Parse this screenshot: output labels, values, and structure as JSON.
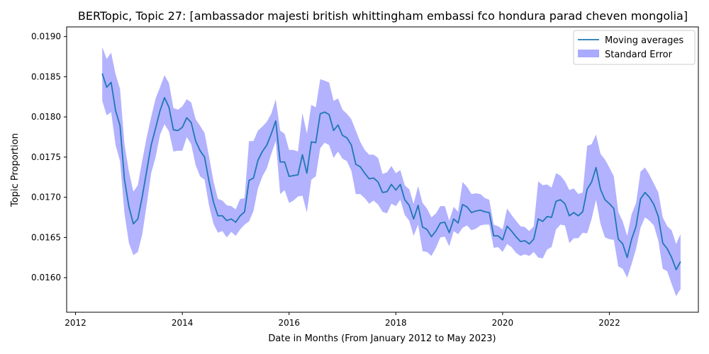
{
  "chart_data": {
    "type": "line",
    "title": "BERTopic, Topic 27: [ambassador majesti british whittingham embassi fco hondura parad cheven mongolia]",
    "xlabel": "Date in Months (From January 2012 to May 2023)",
    "ylabel": "Topic Proportion",
    "xlim": [
      "2011-11",
      "2023-09"
    ],
    "ylim": [
      0.01557,
      0.01912
    ],
    "x_ticks": [
      "2012",
      "2014",
      "2016",
      "2018",
      "2020",
      "2022"
    ],
    "y_ticks": [
      "0.0160",
      "0.0165",
      "0.0170",
      "0.0175",
      "0.0180",
      "0.0185",
      "0.0190"
    ],
    "grid": false,
    "legend": {
      "position": "top-right",
      "entries": [
        "Moving averages",
        "Standard Error"
      ]
    },
    "series": [
      {
        "name": "Moving averages",
        "color": "#1f77b4",
        "points": [
          [
            "2012-07",
            0.01854
          ],
          [
            "2012-08",
            0.01837
          ],
          [
            "2012-09",
            0.01843
          ],
          [
            "2012-10",
            0.01808
          ],
          [
            "2012-11",
            0.01789
          ],
          [
            "2012-12",
            0.01722
          ],
          [
            "2013-01",
            0.01688
          ],
          [
            "2013-02",
            0.01667
          ],
          [
            "2013-03",
            0.01673
          ],
          [
            "2013-04",
            0.01701
          ],
          [
            "2013-05",
            0.01733
          ],
          [
            "2013-06",
            0.01765
          ],
          [
            "2013-07",
            0.01786
          ],
          [
            "2013-08",
            0.01808
          ],
          [
            "2013-09",
            0.01824
          ],
          [
            "2013-10",
            0.01812
          ],
          [
            "2013-11",
            0.01784
          ],
          [
            "2013-12",
            0.01783
          ],
          [
            "2014-01",
            0.01787
          ],
          [
            "2014-02",
            0.01799
          ],
          [
            "2014-03",
            0.01793
          ],
          [
            "2014-04",
            0.0177
          ],
          [
            "2014-05",
            0.01758
          ],
          [
            "2014-06",
            0.0175
          ],
          [
            "2014-07",
            0.0172
          ],
          [
            "2014-08",
            0.01694
          ],
          [
            "2014-09",
            0.01677
          ],
          [
            "2014-10",
            0.01677
          ],
          [
            "2014-11",
            0.01671
          ],
          [
            "2014-12",
            0.01673
          ],
          [
            "2015-01",
            0.01669
          ],
          [
            "2015-02",
            0.01677
          ],
          [
            "2015-03",
            0.01682
          ],
          [
            "2015-04",
            0.01721
          ],
          [
            "2015-05",
            0.01724
          ],
          [
            "2015-06",
            0.01746
          ],
          [
            "2015-07",
            0.01757
          ],
          [
            "2015-08",
            0.01765
          ],
          [
            "2015-09",
            0.01779
          ],
          [
            "2015-10",
            0.01795
          ],
          [
            "2015-11",
            0.01744
          ],
          [
            "2015-12",
            0.01744
          ],
          [
            "2016-01",
            0.01726
          ],
          [
            "2016-02",
            0.01727
          ],
          [
            "2016-03",
            0.01728
          ],
          [
            "2016-04",
            0.01753
          ],
          [
            "2016-05",
            0.0173
          ],
          [
            "2016-06",
            0.01769
          ],
          [
            "2016-07",
            0.01768
          ],
          [
            "2016-08",
            0.01804
          ],
          [
            "2016-09",
            0.01806
          ],
          [
            "2016-10",
            0.01803
          ],
          [
            "2016-11",
            0.01783
          ],
          [
            "2016-12",
            0.0179
          ],
          [
            "2017-01",
            0.01777
          ],
          [
            "2017-02",
            0.01774
          ],
          [
            "2017-03",
            0.01765
          ],
          [
            "2017-04",
            0.01741
          ],
          [
            "2017-05",
            0.01738
          ],
          [
            "2017-06",
            0.0173
          ],
          [
            "2017-07",
            0.01723
          ],
          [
            "2017-08",
            0.01724
          ],
          [
            "2017-09",
            0.01719
          ],
          [
            "2017-10",
            0.01706
          ],
          [
            "2017-11",
            0.01707
          ],
          [
            "2017-12",
            0.01716
          ],
          [
            "2018-01",
            0.01709
          ],
          [
            "2018-02",
            0.01716
          ],
          [
            "2018-03",
            0.01697
          ],
          [
            "2018-04",
            0.0169
          ],
          [
            "2018-05",
            0.01673
          ],
          [
            "2018-06",
            0.0169
          ],
          [
            "2018-07",
            0.01663
          ],
          [
            "2018-08",
            0.0166
          ],
          [
            "2018-09",
            0.01651
          ],
          [
            "2018-10",
            0.01658
          ],
          [
            "2018-11",
            0.01668
          ],
          [
            "2018-12",
            0.01669
          ],
          [
            "2019-01",
            0.01656
          ],
          [
            "2019-02",
            0.01673
          ],
          [
            "2019-03",
            0.01668
          ],
          [
            "2019-04",
            0.01691
          ],
          [
            "2019-05",
            0.01688
          ],
          [
            "2019-06",
            0.01681
          ],
          [
            "2019-07",
            0.01683
          ],
          [
            "2019-08",
            0.01684
          ],
          [
            "2019-09",
            0.01682
          ],
          [
            "2019-10",
            0.01681
          ],
          [
            "2019-11",
            0.01652
          ],
          [
            "2019-12",
            0.01652
          ],
          [
            "2020-01",
            0.01647
          ],
          [
            "2020-02",
            0.01664
          ],
          [
            "2020-03",
            0.01658
          ],
          [
            "2020-04",
            0.01651
          ],
          [
            "2020-05",
            0.01645
          ],
          [
            "2020-06",
            0.01646
          ],
          [
            "2020-07",
            0.01642
          ],
          [
            "2020-08",
            0.01648
          ],
          [
            "2020-09",
            0.01673
          ],
          [
            "2020-10",
            0.0167
          ],
          [
            "2020-11",
            0.01676
          ],
          [
            "2020-12",
            0.01675
          ],
          [
            "2021-01",
            0.01695
          ],
          [
            "2021-02",
            0.01697
          ],
          [
            "2021-03",
            0.01692
          ],
          [
            "2021-04",
            0.01677
          ],
          [
            "2021-05",
            0.01681
          ],
          [
            "2021-06",
            0.01677
          ],
          [
            "2021-07",
            0.01682
          ],
          [
            "2021-08",
            0.0171
          ],
          [
            "2021-09",
            0.01719
          ],
          [
            "2021-10",
            0.01737
          ],
          [
            "2021-11",
            0.0171
          ],
          [
            "2021-12",
            0.01697
          ],
          [
            "2022-01",
            0.01692
          ],
          [
            "2022-02",
            0.01686
          ],
          [
            "2022-03",
            0.01648
          ],
          [
            "2022-04",
            0.01642
          ],
          [
            "2022-05",
            0.01625
          ],
          [
            "2022-06",
            0.01648
          ],
          [
            "2022-07",
            0.01664
          ],
          [
            "2022-08",
            0.01698
          ],
          [
            "2022-09",
            0.01706
          ],
          [
            "2022-10",
            0.017
          ],
          [
            "2022-11",
            0.01691
          ],
          [
            "2022-12",
            0.01676
          ],
          [
            "2023-01",
            0.01643
          ],
          [
            "2023-02",
            0.01636
          ],
          [
            "2023-03",
            0.01625
          ],
          [
            "2023-04",
            0.0161
          ],
          [
            "2023-05",
            0.0162
          ]
        ]
      },
      {
        "name": "Standard Error",
        "color": "#aaaaff",
        "upper": [
          0.01887,
          0.01872,
          0.0188,
          0.01853,
          0.01835,
          0.01766,
          0.01732,
          0.01707,
          0.01715,
          0.01746,
          0.01775,
          0.018,
          0.01823,
          0.01837,
          0.01852,
          0.01842,
          0.01811,
          0.01809,
          0.01813,
          0.01822,
          0.01818,
          0.01797,
          0.01789,
          0.0178,
          0.01751,
          0.0172,
          0.01698,
          0.01696,
          0.0169,
          0.01689,
          0.01685,
          0.01698,
          0.01699,
          0.0177,
          0.0177,
          0.01783,
          0.01788,
          0.01794,
          0.01804,
          0.01822,
          0.01783,
          0.01779,
          0.01759,
          0.01759,
          0.01757,
          0.01805,
          0.01779,
          0.01815,
          0.01812,
          0.01847,
          0.01845,
          0.01843,
          0.0182,
          0.01823,
          0.01809,
          0.01804,
          0.01797,
          0.01783,
          0.01769,
          0.01759,
          0.01753,
          0.01753,
          0.01749,
          0.01729,
          0.01731,
          0.01739,
          0.0173,
          0.01734,
          0.01715,
          0.0171,
          0.01692,
          0.01714,
          0.01693,
          0.01686,
          0.01675,
          0.0168,
          0.01689,
          0.01689,
          0.01671,
          0.01688,
          0.01682,
          0.01719,
          0.01713,
          0.01704,
          0.01705,
          0.01704,
          0.01699,
          0.01697,
          0.01666,
          0.01664,
          0.0166,
          0.01686,
          0.01678,
          0.01671,
          0.01664,
          0.01663,
          0.01658,
          0.01664,
          0.0172,
          0.01715,
          0.01716,
          0.01712,
          0.0173,
          0.01727,
          0.0172,
          0.01709,
          0.01711,
          0.01704,
          0.01706,
          0.01764,
          0.01766,
          0.01778,
          0.01754,
          0.01747,
          0.01737,
          0.01726,
          0.01682,
          0.0167,
          0.01652,
          0.01679,
          0.01693,
          0.01732,
          0.01737,
          0.01728,
          0.01717,
          0.01706,
          0.01675,
          0.01664,
          0.01659,
          0.01642,
          0.01654
        ],
        "lower": [
          0.0182,
          0.01802,
          0.01806,
          0.01765,
          0.01745,
          0.0168,
          0.01643,
          0.01628,
          0.01632,
          0.01654,
          0.01691,
          0.0173,
          0.0175,
          0.01778,
          0.01791,
          0.01782,
          0.01757,
          0.01758,
          0.01758,
          0.01775,
          0.01766,
          0.0174,
          0.01726,
          0.01722,
          0.0169,
          0.01667,
          0.01656,
          0.01658,
          0.0165,
          0.01657,
          0.01652,
          0.0166,
          0.01666,
          0.0167,
          0.01683,
          0.01711,
          0.01726,
          0.01736,
          0.01754,
          0.0177,
          0.01704,
          0.01709,
          0.01693,
          0.01696,
          0.01701,
          0.01702,
          0.01681,
          0.01722,
          0.01726,
          0.01761,
          0.01768,
          0.01765,
          0.01749,
          0.01757,
          0.01748,
          0.01745,
          0.01733,
          0.01704,
          0.01704,
          0.01699,
          0.01692,
          0.01696,
          0.01691,
          0.01682,
          0.0168,
          0.01692,
          0.01689,
          0.01697,
          0.01678,
          0.01671,
          0.01652,
          0.01666,
          0.01633,
          0.01632,
          0.01627,
          0.01637,
          0.0165,
          0.01651,
          0.01639,
          0.01658,
          0.01654,
          0.01662,
          0.01665,
          0.01659,
          0.01661,
          0.01665,
          0.01666,
          0.01666,
          0.01637,
          0.01638,
          0.01632,
          0.01642,
          0.01638,
          0.01631,
          0.01627,
          0.01629,
          0.01627,
          0.01632,
          0.01625,
          0.01624,
          0.01635,
          0.01638,
          0.0166,
          0.01666,
          0.01665,
          0.01643,
          0.01649,
          0.01649,
          0.01656,
          0.01655,
          0.01673,
          0.01697,
          0.01667,
          0.0165,
          0.01648,
          0.01647,
          0.01614,
          0.01611,
          0.016,
          0.01617,
          0.01636,
          0.01662,
          0.01675,
          0.01671,
          0.01665,
          0.01646,
          0.01611,
          0.01608,
          0.01592,
          0.01577,
          0.01586
        ]
      }
    ]
  }
}
